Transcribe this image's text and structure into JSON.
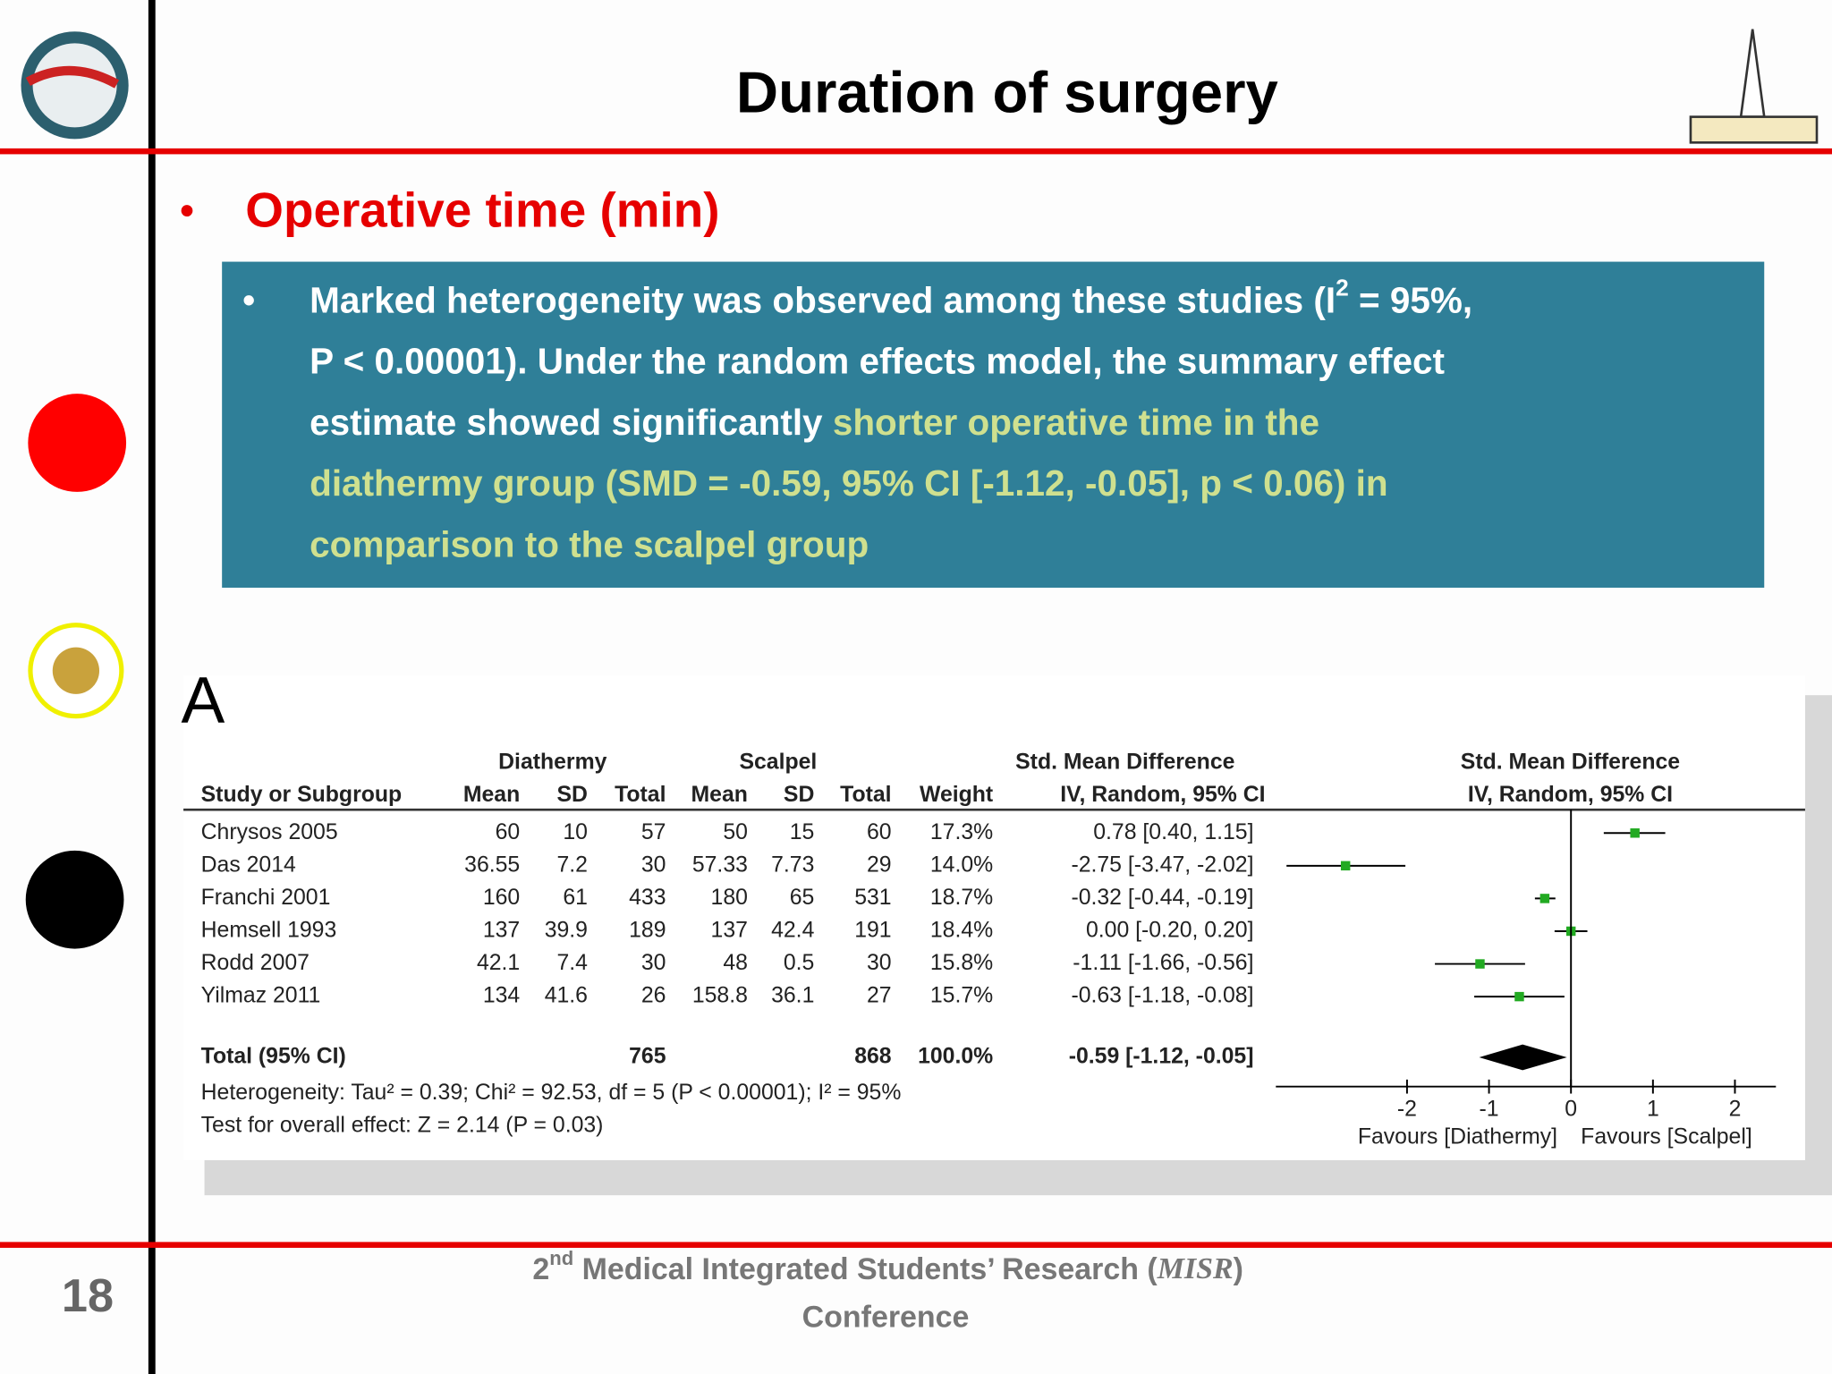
{
  "header": {
    "title": "Duration of surgery"
  },
  "bullet": "Operative time (min)",
  "box": {
    "lines": [
      [
        {
          "text": "Marked heterogeneity was observed among these studies (I",
          "style": "plain"
        },
        {
          "text": "2",
          "style": "sup"
        },
        {
          "text": " = 95%,",
          "style": "plain"
        }
      ],
      [
        {
          "text": "P < 0.00001). Under the random effects model, the summary effect",
          "style": "plain"
        }
      ],
      [
        {
          "text": "estimate showed significantly ",
          "style": "plain"
        },
        {
          "text": "shorter operative time in the",
          "style": "highlight"
        }
      ],
      [
        {
          "text": "diathermy group (SMD = -0.59, 95% CI [-1.12, -0.05], p < 0.06) in",
          "style": "highlight"
        }
      ],
      [
        {
          "text": "comparison to the scalpel group",
          "style": "highlight"
        }
      ]
    ]
  },
  "forest": {
    "panel": "A",
    "group_headers": [
      "Diathermy",
      "Scalpel",
      "Std. Mean Difference",
      "Std. Mean Difference"
    ],
    "columns": [
      "Study or Subgroup",
      "Mean",
      "SD",
      "Total",
      "Mean",
      "SD",
      "Total",
      "Weight",
      "IV, Random, 95% CI",
      "IV, Random, 95% CI"
    ],
    "studies": [
      {
        "cells": [
          "Chrysos 2005",
          "60",
          "10",
          "57",
          "50",
          "15",
          "60",
          "17.3%"
        ],
        "effect": {
          "label": "0.78 [0.40, 1.15]",
          "est": 0.78,
          "lo": 0.4,
          "hi": 1.15
        }
      },
      {
        "cells": [
          "Das 2014",
          "36.55",
          "7.2",
          "30",
          "57.33",
          "7.73",
          "29",
          "14.0%"
        ],
        "effect": {
          "label": "-2.75 [-3.47, -2.02]",
          "est": -2.75,
          "lo": -3.47,
          "hi": -2.02
        }
      },
      {
        "cells": [
          "Franchi 2001",
          "160",
          "61",
          "433",
          "180",
          "65",
          "531",
          "18.7%"
        ],
        "effect": {
          "label": "-0.32 [-0.44, -0.19]",
          "est": -0.32,
          "lo": -0.44,
          "hi": -0.19
        }
      },
      {
        "cells": [
          "Hemsell 1993",
          "137",
          "39.9",
          "189",
          "137",
          "42.4",
          "191",
          "18.4%"
        ],
        "effect": {
          "label": "0.00 [-0.20, 0.20]",
          "est": 0,
          "lo": -0.2,
          "hi": 0.2
        }
      },
      {
        "cells": [
          "Rodd 2007",
          "42.1",
          "7.4",
          "30",
          "48",
          "0.5",
          "30",
          "15.8%"
        ],
        "effect": {
          "label": "-1.11 [-1.66, -0.56]",
          "est": -1.11,
          "lo": -1.66,
          "hi": -0.56
        }
      },
      {
        "cells": [
          "Yilmaz 2011",
          "134",
          "41.6",
          "26",
          "158.8",
          "36.1",
          "27",
          "15.7%"
        ],
        "effect": {
          "label": "-0.63 [-1.18, -0.08]",
          "est": -0.63,
          "lo": -1.18,
          "hi": -0.08
        }
      }
    ],
    "total": {
      "cells": [
        "Total (95% CI)",
        "765",
        "868",
        "100.0%"
      ],
      "effect": {
        "label": "-0.59 [-1.12, -0.05]",
        "est": -0.59,
        "lo": -1.12,
        "hi": -0.05
      }
    },
    "notes": [
      "Heterogeneity: Tau² = 0.39; Chi² = 92.53, df = 5 (P < 0.00001); I² = 95%",
      "Test for overall effect: Z = 2.14 (P = 0.03)"
    ],
    "xlim": [
      -3.6,
      2.5
    ],
    "xticks": [
      -2,
      -1,
      0,
      1,
      2
    ],
    "favours": [
      "Favours [Diathermy]",
      "Favours [Scalpel]"
    ],
    "color": "#22aa22"
  },
  "footer": {
    "line1": [
      {
        "text": "2",
        "style": "plain"
      },
      {
        "text": "nd",
        "style": "sup"
      },
      {
        "text": "  Medical Integrated Students’ Research (",
        "style": "plain"
      },
      {
        "text": "MISR",
        "style": "italic"
      },
      {
        "text": ")",
        "style": "plain"
      }
    ],
    "line2": "Conference",
    "page": "18"
  }
}
